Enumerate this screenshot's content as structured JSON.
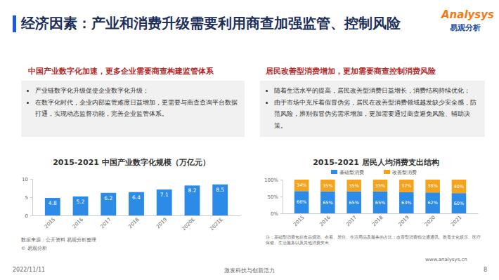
{
  "header": {
    "title": "经济因素：产业和消费升级需要利用商查加强监管、控制风险",
    "logo": "Analysys",
    "logo_cn": "易观分析"
  },
  "panels": [
    {
      "heading": "中国产业数字化加速，更多企业需要商查构建监管体系",
      "bullets": [
        "产业链数字化升级促使企业数字化升级；",
        "在数字化时代，企业内部监管难度日益增加，更需要与商查查询平台数据打通，实现动态监督功能，完善企业监管体系。"
      ]
    },
    {
      "heading": "居民改善型消费增加，更加需要商查控制消费风险",
      "bullets": [
        "随着生活水平的提高，居民改善型消费日益增长，消费结构持续优化；",
        "由于市场中充斥着假冒伪劣，居民在改善型消费领域越发缺少安全感，防范风险，辨别假冒伪劣需求增加，更加需要通过商查避免风险、辅助决策。"
      ]
    }
  ],
  "chart_data": [
    {
      "type": "bar",
      "title": "2015-2021 中国产业数字化规模（万亿元）",
      "categories": [
        "2015",
        "2016",
        "2017",
        "2018",
        "2019",
        "2020E",
        "2021E"
      ],
      "values": [
        4.8,
        5.2,
        6.2,
        6.4,
        7.1,
        8.2,
        8.5
      ],
      "color": "#2b8be6",
      "ylim": [
        0,
        10
      ],
      "yticks": [
        0,
        5,
        10
      ],
      "grid": false,
      "data_labels": true,
      "annotations": [
        "数据来源：公开资料 易观分析整理",
        "© 易观分析"
      ]
    },
    {
      "type": "bar",
      "title": "2015-2021 居民人均消费支出结构",
      "categories": [
        "2015",
        "2016",
        "2017",
        "2018",
        "2019",
        "2020",
        "2021"
      ],
      "series": [
        {
          "name": "基础型消费",
          "color": "#2b8be6",
          "values": [
            66,
            65,
            65,
            65,
            63,
            62,
            60
          ],
          "value_labels": [
            "66%",
            "65%",
            "65%",
            "65%",
            "63%",
            "62%",
            "60%"
          ]
        },
        {
          "name": "改善型消费",
          "color": "#f5a31d",
          "values": [
            34,
            35,
            35,
            35,
            37,
            38,
            40
          ],
          "value_labels": [
            "34%",
            "35%",
            "35%",
            "35%",
            "37%",
            "38%",
            "40%"
          ]
        }
      ],
      "stacked": true,
      "ylim": [
        0,
        100
      ],
      "yticks": [
        {
          "value": 0,
          "label": "0%"
        },
        {
          "value": 50,
          "label": "50%"
        },
        {
          "value": 100,
          "label": "100%"
        }
      ],
      "grid": false,
      "data_labels": true,
      "legend": "top",
      "annotations": [
        "注：基础型消费包括食品烟酒、衣着、居住、生活用品及服务的占比；改善型消费指交通通讯、教育文化娱乐、医疗保健、生活服务以及其他消费支出"
      ]
    }
  ],
  "footer": {
    "date": "2022/11/11",
    "slogan": "激发科技与创新活力",
    "url": "www.analysys.cn",
    "page": "8"
  }
}
